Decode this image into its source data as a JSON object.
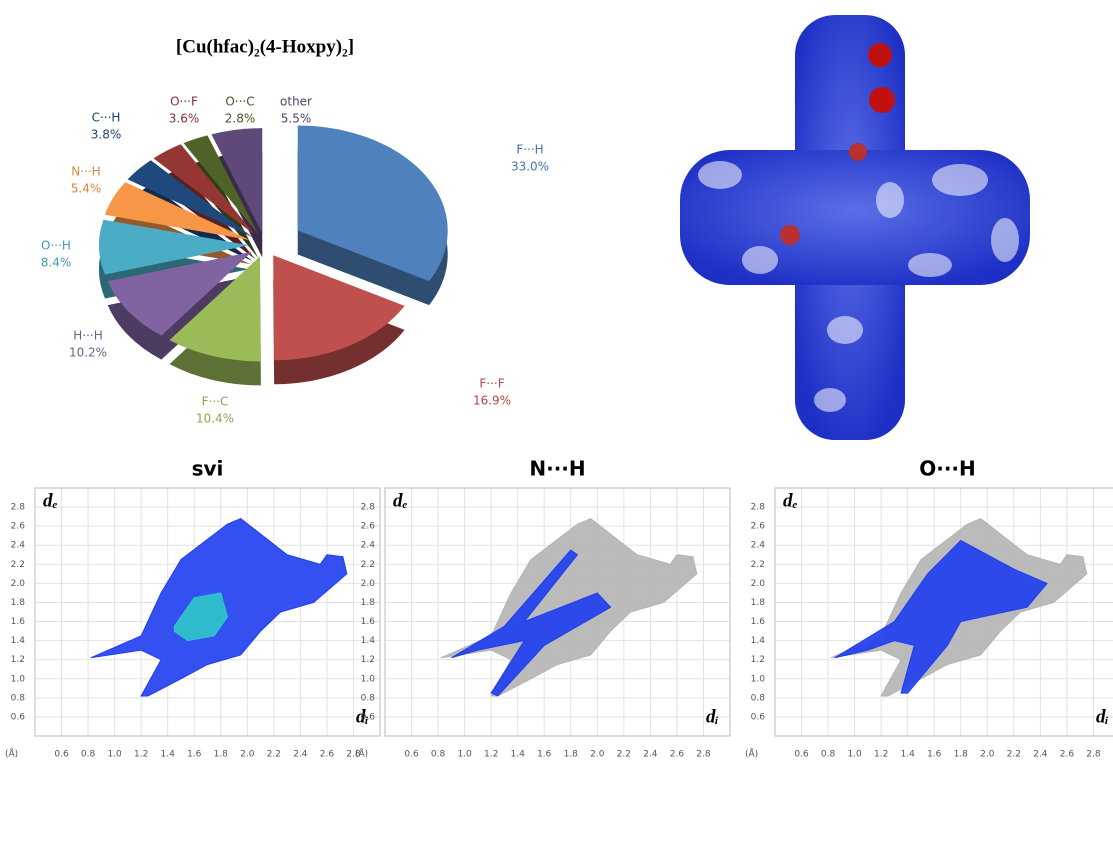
{
  "chart_data": [
    {
      "type": "pie",
      "title": "[Cu(hfac)₂(4-Hoxpy)₂]",
      "categories": [
        "F···H",
        "F···F",
        "F···C",
        "H···H",
        "O···H",
        "N···H",
        "C···H",
        "O···F",
        "O···C",
        "other"
      ],
      "values": [
        33.0,
        16.9,
        10.4,
        10.2,
        8.4,
        5.4,
        3.8,
        3.6,
        2.8,
        5.5
      ],
      "value_labels": [
        "33.0%",
        "16.9%",
        "10.4%",
        "10.2%",
        "8.4%",
        "5.4%",
        "3.8%",
        "3.6%",
        "2.8%",
        "5.5%"
      ],
      "colors": [
        "#4f81bd",
        "#c0504d",
        "#9bbb59",
        "#8064a2",
        "#4bacc6",
        "#f79646",
        "#1f497d",
        "#943634",
        "#4f6228",
        "#5f497a"
      ]
    },
    {
      "type": "area",
      "title": "svi",
      "x_label": "dᵢ",
      "y_label": "dₑ",
      "unit": "(Å)",
      "xlim": [
        0.4,
        3.0
      ],
      "ylim": [
        0.4,
        3.0
      ],
      "grid": true,
      "xticks": [
        0.6,
        0.8,
        {
          "value": 1,
          "label": "1.0"
        },
        1.2,
        1.4,
        1.6,
        1.8,
        {
          "value": 2,
          "label": "2.0"
        },
        2.2,
        2.4,
        2.6,
        2.8
      ],
      "yticks": [
        0.6,
        0.8,
        {
          "value": 1,
          "label": "1.0"
        },
        1.2,
        1.4,
        1.6,
        1.8,
        {
          "value": 2,
          "label": "2.0"
        },
        2.2,
        2.4,
        2.6,
        2.8
      ],
      "series": [
        {
          "color": "#1f3df0",
          "x": [
            0.82,
            1.2,
            1.35,
            1.5,
            1.85,
            1.95,
            2.3,
            2.55,
            2.6,
            2.72,
            2.75,
            2.5,
            2.25,
            2.1,
            1.95,
            1.7,
            1.5,
            1.25,
            1.2,
            1.35,
            1.2
          ],
          "values": [
            1.22,
            1.45,
            1.9,
            2.25,
            2.62,
            2.68,
            2.3,
            2.2,
            2.3,
            2.28,
            2.1,
            1.8,
            1.7,
            1.5,
            1.25,
            1.15,
            1.0,
            0.82,
            0.82,
            1.2,
            1.3
          ]
        },
        {
          "color": "#2ec8c8",
          "x": [
            1.45,
            1.6,
            1.8,
            1.85,
            1.75,
            1.55,
            1.45
          ],
          "values": [
            1.55,
            1.85,
            1.9,
            1.65,
            1.45,
            1.4,
            1.5
          ]
        }
      ]
    },
    {
      "type": "area",
      "title": "N···H",
      "x_label": "dᵢ",
      "y_label": "dₑ",
      "unit": "(Å)",
      "xlim": [
        0.4,
        3.0
      ],
      "ylim": [
        0.4,
        3.0
      ],
      "grid": true,
      "xticks": [
        0.6,
        0.8,
        {
          "value": 1,
          "label": "1.0"
        },
        1.2,
        1.4,
        1.6,
        1.8,
        {
          "value": 2,
          "label": "2.0"
        },
        2.2,
        2.4,
        2.6,
        2.8
      ],
      "yticks": [
        0.6,
        0.8,
        {
          "value": 1,
          "label": "1.0"
        },
        1.2,
        1.4,
        1.6,
        1.8,
        {
          "value": 2,
          "label": "2.0"
        },
        2.2,
        2.4,
        2.6,
        2.8
      ],
      "series": [
        {
          "color": "#b4b4b4",
          "x": [
            0.82,
            1.2,
            1.35,
            1.5,
            1.85,
            1.95,
            2.3,
            2.55,
            2.6,
            2.72,
            2.75,
            2.5,
            2.25,
            2.1,
            1.95,
            1.7,
            1.5,
            1.25,
            1.2,
            1.35,
            1.2
          ],
          "values": [
            1.22,
            1.45,
            1.9,
            2.25,
            2.62,
            2.68,
            2.3,
            2.2,
            2.3,
            2.28,
            2.1,
            1.8,
            1.7,
            1.5,
            1.25,
            1.15,
            1.0,
            0.82,
            0.82,
            1.2,
            1.3
          ]
        },
        {
          "color": "#1f3df0",
          "x": [
            0.9,
            1.3,
            1.8,
            1.85,
            1.45,
            2.0,
            2.1,
            1.6,
            1.25,
            1.2,
            1.45,
            1.1
          ],
          "values": [
            1.22,
            1.55,
            2.35,
            2.3,
            1.6,
            1.9,
            1.75,
            1.35,
            0.82,
            0.85,
            1.4,
            1.3
          ]
        }
      ]
    },
    {
      "type": "area",
      "title": "O···H",
      "x_label": "dᵢ",
      "y_label": "dₑ",
      "unit": "(Å)",
      "xlim": [
        0.4,
        3.0
      ],
      "ylim": [
        0.4,
        3.0
      ],
      "grid": true,
      "xticks": [
        0.6,
        0.8,
        {
          "value": 1,
          "label": "1.0"
        },
        1.2,
        1.4,
        1.6,
        1.8,
        {
          "value": 2,
          "label": "2.0"
        },
        2.2,
        2.4,
        2.6,
        2.8
      ],
      "yticks": [
        0.6,
        0.8,
        {
          "value": 1,
          "label": "1.0"
        },
        1.2,
        1.4,
        1.6,
        1.8,
        {
          "value": 2,
          "label": "2.0"
        },
        2.2,
        2.4,
        2.6,
        2.8
      ],
      "series": [
        {
          "color": "#b4b4b4",
          "x": [
            0.82,
            1.2,
            1.35,
            1.5,
            1.85,
            1.95,
            2.3,
            2.55,
            2.6,
            2.72,
            2.75,
            2.5,
            2.25,
            2.1,
            1.95,
            1.7,
            1.5,
            1.25,
            1.2,
            1.35,
            1.2
          ],
          "values": [
            1.22,
            1.45,
            1.9,
            2.25,
            2.62,
            2.68,
            2.3,
            2.2,
            2.3,
            2.28,
            2.1,
            1.8,
            1.7,
            1.5,
            1.25,
            1.15,
            1.0,
            0.82,
            0.82,
            1.2,
            1.3
          ]
        },
        {
          "color": "#1f3df0",
          "x": [
            0.85,
            1.3,
            1.55,
            1.8,
            2.2,
            2.45,
            2.3,
            1.8,
            1.7,
            1.4,
            1.35,
            1.45,
            1.3,
            1.1
          ],
          "values": [
            1.22,
            1.6,
            2.1,
            2.45,
            2.15,
            2.0,
            1.75,
            1.6,
            1.35,
            0.85,
            0.85,
            1.35,
            1.4,
            1.3
          ]
        }
      ]
    }
  ]
}
